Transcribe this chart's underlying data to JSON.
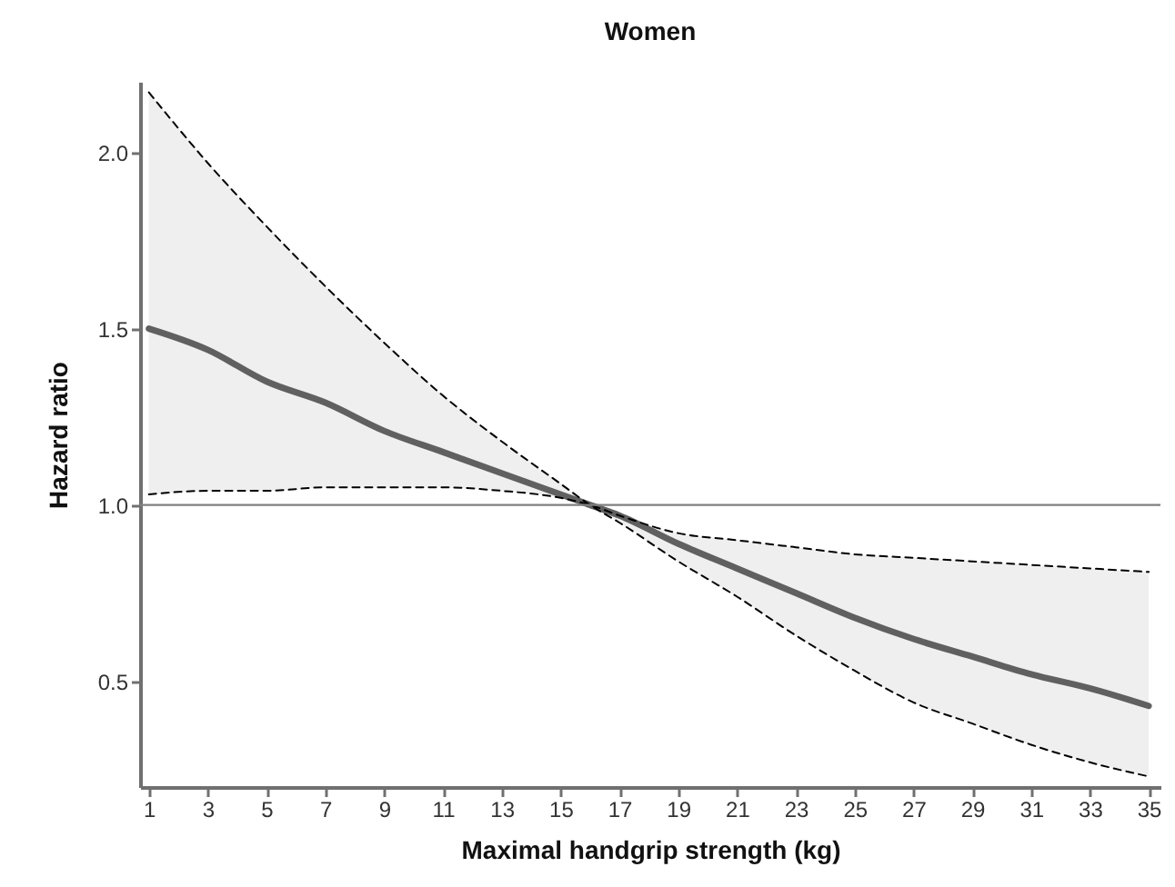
{
  "chart_data": {
    "type": "line",
    "title": "Women",
    "xlabel": "Maximal handgrip strength (kg)",
    "ylabel": "Hazard ratio",
    "x": [
      1,
      3,
      5,
      7,
      9,
      11,
      13,
      15,
      16,
      17,
      19,
      21,
      23,
      25,
      27,
      29,
      31,
      33,
      35
    ],
    "series": [
      {
        "color": "#606060",
        "line_style": "solid",
        "values": [
          1.5,
          1.44,
          1.35,
          1.29,
          1.21,
          1.15,
          1.09,
          1.03,
          1.0,
          0.97,
          0.89,
          0.82,
          0.75,
          0.68,
          0.62,
          0.57,
          0.52,
          0.48,
          0.43
        ],
        "lower": [
          1.03,
          1.04,
          1.04,
          1.05,
          1.05,
          1.05,
          1.04,
          1.02,
          1.0,
          0.95,
          0.84,
          0.74,
          0.63,
          0.53,
          0.44,
          0.38,
          0.32,
          0.27,
          0.23
        ],
        "upper": [
          2.17,
          1.97,
          1.79,
          1.62,
          1.46,
          1.31,
          1.18,
          1.06,
          1.0,
          0.97,
          0.92,
          0.9,
          0.88,
          0.86,
          0.85,
          0.84,
          0.83,
          0.82,
          0.81
        ]
      },
      {
        "color": "#000000",
        "line_style": "dashed",
        "values": [
          2.17,
          1.97,
          1.79,
          1.62,
          1.46,
          1.31,
          1.18,
          1.06,
          1.0,
          0.95,
          0.84,
          0.74,
          0.63,
          0.53,
          0.44,
          0.38,
          0.32,
          0.27,
          0.23
        ]
      },
      {
        "color": "#000000",
        "line_style": "dashed",
        "values": [
          1.03,
          1.04,
          1.04,
          1.05,
          1.05,
          1.05,
          1.04,
          1.02,
          1.0,
          0.97,
          0.92,
          0.9,
          0.88,
          0.86,
          0.85,
          0.84,
          0.83,
          0.82,
          0.81
        ]
      }
    ],
    "xlim": [
      0.7,
      35.4
    ],
    "xticks": [
      1,
      3,
      5,
      7,
      9,
      11,
      13,
      15,
      17,
      19,
      21,
      23,
      25,
      27,
      29,
      31,
      33,
      35
    ],
    "ylim": [
      0.2,
      2.2
    ],
    "yticks": [
      0.5,
      {
        "value": 1,
        "label": "1.0"
      },
      {
        "value": 1.5,
        "label": "1.5"
      },
      {
        "value": 2,
        "label": "2.0"
      }
    ],
    "ref_lines": [
      {
        "axis": "y",
        "value": 1,
        "color": "#808080"
      }
    ],
    "legend": false,
    "grid": false
  }
}
